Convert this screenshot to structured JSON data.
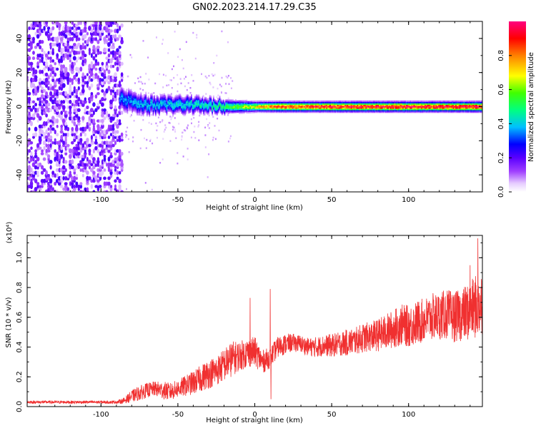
{
  "title": "GN02.2023.214.17.29.C35",
  "chart_data": [
    {
      "type": "heatmap",
      "xlabel": "Height of straight line (km)",
      "ylabel": "Frequency (Hz)",
      "xlim": [
        -148,
        148
      ],
      "ylim": [
        -50,
        50
      ],
      "x_ticks": [
        -100,
        -50,
        0,
        50,
        100
      ],
      "y_ticks": [
        -40,
        -20,
        0,
        20,
        40
      ],
      "colorbar": {
        "label": "Normalized spectral amplitude",
        "range": [
          0,
          1
        ],
        "ticks": [
          "0.0",
          "0.2",
          "0.4",
          "0.6",
          "0.8"
        ],
        "colors": [
          "#ffffff",
          "#e6ccff",
          "#a040ff",
          "#5a00ff",
          "#0000ff",
          "#00c0ff",
          "#00ff80",
          "#40ff00",
          "#ffff00",
          "#ff8000",
          "#ff0000",
          "#ff0080"
        ]
      },
      "noise_region": {
        "x_from": -148,
        "x_to": -85,
        "freq_range": [
          -50,
          50
        ],
        "amplitude": 0.15
      },
      "signal_band": [
        {
          "x": -88,
          "freq": 5,
          "amplitude": 0.35,
          "width_hz": 9
        },
        {
          "x": -75,
          "freq": 1,
          "amplitude": 0.38,
          "width_hz": 8
        },
        {
          "x": -60,
          "freq": 1,
          "amplitude": 0.4,
          "width_hz": 7
        },
        {
          "x": -45,
          "freq": 1,
          "amplitude": 0.42,
          "width_hz": 7
        },
        {
          "x": -30,
          "freq": 1,
          "amplitude": 0.45,
          "width_hz": 6
        },
        {
          "x": -15,
          "freq": 0,
          "amplitude": 0.55,
          "width_hz": 5
        },
        {
          "x": 0,
          "freq": 0,
          "amplitude": 0.7,
          "width_hz": 4
        },
        {
          "x": 15,
          "freq": 0,
          "amplitude": 0.85,
          "width_hz": 4
        },
        {
          "x": 40,
          "freq": 0,
          "amplitude": 0.9,
          "width_hz": 4
        },
        {
          "x": 70,
          "freq": 0,
          "amplitude": 0.92,
          "width_hz": 4
        },
        {
          "x": 100,
          "freq": 0,
          "amplitude": 0.93,
          "width_hz": 4
        },
        {
          "x": 125,
          "freq": 0,
          "amplitude": 0.94,
          "width_hz": 4
        },
        {
          "x": 148,
          "freq": 0,
          "amplitude": 0.95,
          "width_hz": 4
        }
      ]
    },
    {
      "type": "line",
      "xlabel": "Height of straight line (km)",
      "ylabel": "SNR (10 * v/v)",
      "y_scale_label": "(x10⁴)",
      "xlim": [
        -148,
        148
      ],
      "ylim": [
        0,
        1.15
      ],
      "x_ticks": [
        -100,
        -50,
        0,
        50,
        100
      ],
      "y_ticks": [
        0.0,
        0.2,
        0.4,
        0.6,
        0.8,
        1.0
      ],
      "series": [
        {
          "color": "#f03030",
          "x": [
            -148,
            -130,
            -110,
            -90,
            -85,
            -80,
            -75,
            -70,
            -65,
            -60,
            -55,
            -50,
            -45,
            -40,
            -35,
            -30,
            -25,
            -20,
            -15,
            -10,
            -5,
            0,
            5,
            10,
            15,
            20,
            25,
            30,
            35,
            40,
            45,
            50,
            55,
            60,
            65,
            70,
            75,
            80,
            85,
            90,
            95,
            100,
            105,
            110,
            115,
            120,
            125,
            130,
            135,
            140,
            145,
            148
          ],
          "y": [
            0.03,
            0.03,
            0.03,
            0.03,
            0.04,
            0.07,
            0.09,
            0.11,
            0.12,
            0.11,
            0.1,
            0.12,
            0.14,
            0.16,
            0.19,
            0.22,
            0.24,
            0.28,
            0.32,
            0.34,
            0.36,
            0.37,
            0.3,
            0.33,
            0.4,
            0.42,
            0.43,
            0.42,
            0.4,
            0.4,
            0.41,
            0.41,
            0.42,
            0.43,
            0.44,
            0.46,
            0.47,
            0.48,
            0.5,
            0.52,
            0.55,
            0.54,
            0.56,
            0.58,
            0.6,
            0.61,
            0.62,
            0.6,
            0.62,
            0.64,
            0.68,
            0.7
          ],
          "noise_amplitude": [
            0.01,
            0.01,
            0.01,
            0.01,
            0.02,
            0.04,
            0.05,
            0.05,
            0.05,
            0.06,
            0.06,
            0.06,
            0.07,
            0.08,
            0.09,
            0.1,
            0.1,
            0.11,
            0.12,
            0.1,
            0.1,
            0.1,
            0.08,
            0.07,
            0.07,
            0.07,
            0.06,
            0.06,
            0.06,
            0.07,
            0.07,
            0.08,
            0.08,
            0.09,
            0.09,
            0.1,
            0.1,
            0.11,
            0.12,
            0.13,
            0.14,
            0.14,
            0.15,
            0.15,
            0.16,
            0.16,
            0.17,
            0.17,
            0.18,
            0.2,
            0.22,
            0.22
          ],
          "spikes": [
            {
              "x": -3,
              "y": 0.73
            },
            {
              "x": 10,
              "y": 0.79
            },
            {
              "x": 10.5,
              "y": 0.05
            },
            {
              "x": 145,
              "y": 1.13
            },
            {
              "x": 140,
              "y": 0.95
            }
          ]
        }
      ]
    }
  ]
}
